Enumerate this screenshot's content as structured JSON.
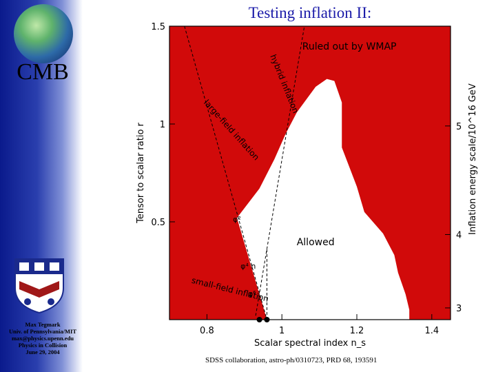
{
  "slide": {
    "title": "Testing inflation II:",
    "sidebar_title": "CMB",
    "credits": [
      "Max Tegmark",
      "Univ. of Pennsylvania/MIT",
      "max@physics.upenn.edu",
      "Physics in Collision",
      "June 29, 2004"
    ],
    "footer": "SDSS collaboration, astro-ph/0310723, PRD 68, 193591",
    "icons": [
      "cmb-sky-map-icon",
      "penn-crest-icon"
    ]
  },
  "colors": {
    "excluded": "#d10a0a",
    "allowed": "#ffffff",
    "title": "#1a1aa8",
    "sidebar": "#0a1a8c"
  },
  "chart_data": {
    "type": "area",
    "xlabel": "Scalar spectral index n_s",
    "ylabel": "Tensor to scalar ratio r",
    "right_axis_label": "Inflation energy scale/10^16 GeV",
    "xlim": [
      0.7,
      1.45
    ],
    "ylim": [
      0,
      1.5
    ],
    "x_ticks": [
      "0.8",
      "1",
      "1.2",
      "1.4"
    ],
    "y_ticks": [
      "0.5",
      "1",
      "1.5"
    ],
    "right_ticks": [
      "3",
      "4",
      "5"
    ],
    "grid": false,
    "allowed_region": {
      "label": "Allowed",
      "x": [
        0.96,
        0.88,
        0.94,
        0.98,
        1.01,
        1.04,
        1.09,
        1.12,
        1.14,
        1.16,
        1.16,
        1.2,
        1.22,
        1.27,
        1.3,
        1.31,
        1.33,
        1.34,
        1.34,
        0.96
      ],
      "y": [
        0,
        0.52,
        0.67,
        0.82,
        0.95,
        1.06,
        1.19,
        1.23,
        1.22,
        1.11,
        0.88,
        0.68,
        0.55,
        0.44,
        0.33,
        0.24,
        0.13,
        0.05,
        0,
        0
      ]
    },
    "excluded_label": "Ruled out by WMAP",
    "model_lines": [
      {
        "label": "hybrid inflation",
        "x": [
          0.93,
          1.06
        ],
        "y": [
          0.02,
          1.5
        ]
      },
      {
        "label": "large-field inflation",
        "x": [
          0.74,
          0.96
        ],
        "y": [
          1.5,
          0
        ]
      },
      {
        "label": "small-field inflation",
        "x": [
          0.96,
          0.96
        ],
        "y": [
          0,
          0.36
        ]
      }
    ],
    "annotations": [
      {
        "text": "φ²",
        "x": 0.88,
        "y": 0.5
      },
      {
        "text": "φ⁴ n",
        "x": 0.91,
        "y": 0.26
      },
      {
        "text": "φ⁶",
        "x": 0.92,
        "y": 0.12
      }
    ],
    "markers": [
      {
        "x": 0.94,
        "y": 0.0
      },
      {
        "x": 0.96,
        "y": 0.0
      }
    ]
  }
}
